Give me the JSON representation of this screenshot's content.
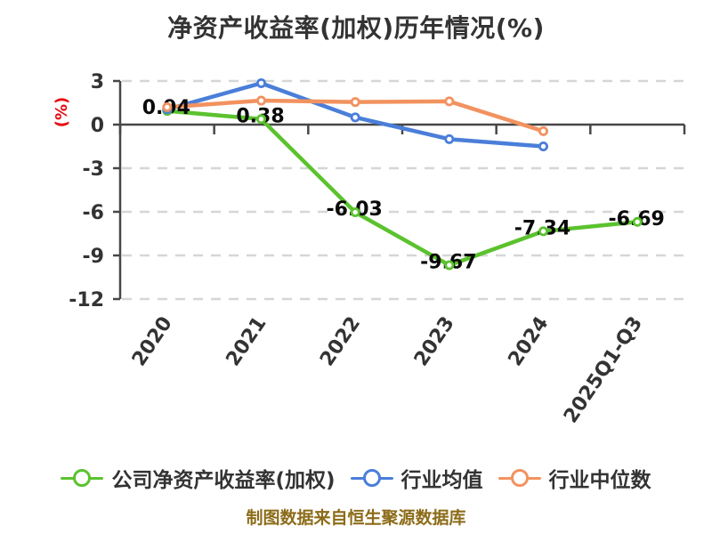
{
  "footer": "制图数据来自恒生聚源数据库",
  "colors": {
    "title_text": "#333333",
    "axis_line": "#474747",
    "gridline": "#d6d6d6",
    "tick_label": "#333333",
    "data_label": "#0a0a0a",
    "y_axis_title": "#e60c14",
    "legend_text": "#333333",
    "caption_text": "#8c6c19",
    "series_green": "#5bc22e",
    "series_blue": "#4a7ed9",
    "series_orange": "#f2925f",
    "marker_fill": "#ffffff"
  },
  "chart_data": {
    "type": "line",
    "title": "净资产收益率(加权)历年情况(%)",
    "ylabel": "(%)",
    "xlabel": "",
    "categories": [
      "2020",
      "2021",
      "2022",
      "2023",
      "2024",
      "2025Q1-Q3"
    ],
    "y_ticks": [
      3,
      0,
      -3,
      -6,
      -9,
      -12
    ],
    "ylim": [
      -12,
      3
    ],
    "grid": "horizontal-dashed",
    "legend_position": "bottom",
    "series": [
      {
        "name": "公司净资产收益率(加权)",
        "color": "#5bc22e",
        "data_labels": true,
        "values": [
          0.94,
          0.38,
          -6.03,
          -9.67,
          -7.34,
          -6.69
        ],
        "label_texts": [
          "0.94",
          "0.38",
          "-6.03",
          "-9.67",
          "-7.34",
          "-6.69"
        ]
      },
      {
        "name": "行业均值",
        "color": "#4a7ed9",
        "data_labels": false,
        "values": [
          1.05,
          2.85,
          0.5,
          -1.0,
          -1.5,
          null
        ]
      },
      {
        "name": "行业中位数",
        "color": "#f2925f",
        "data_labels": false,
        "values": [
          1.2,
          1.65,
          1.55,
          1.6,
          -0.45,
          null
        ]
      }
    ]
  }
}
